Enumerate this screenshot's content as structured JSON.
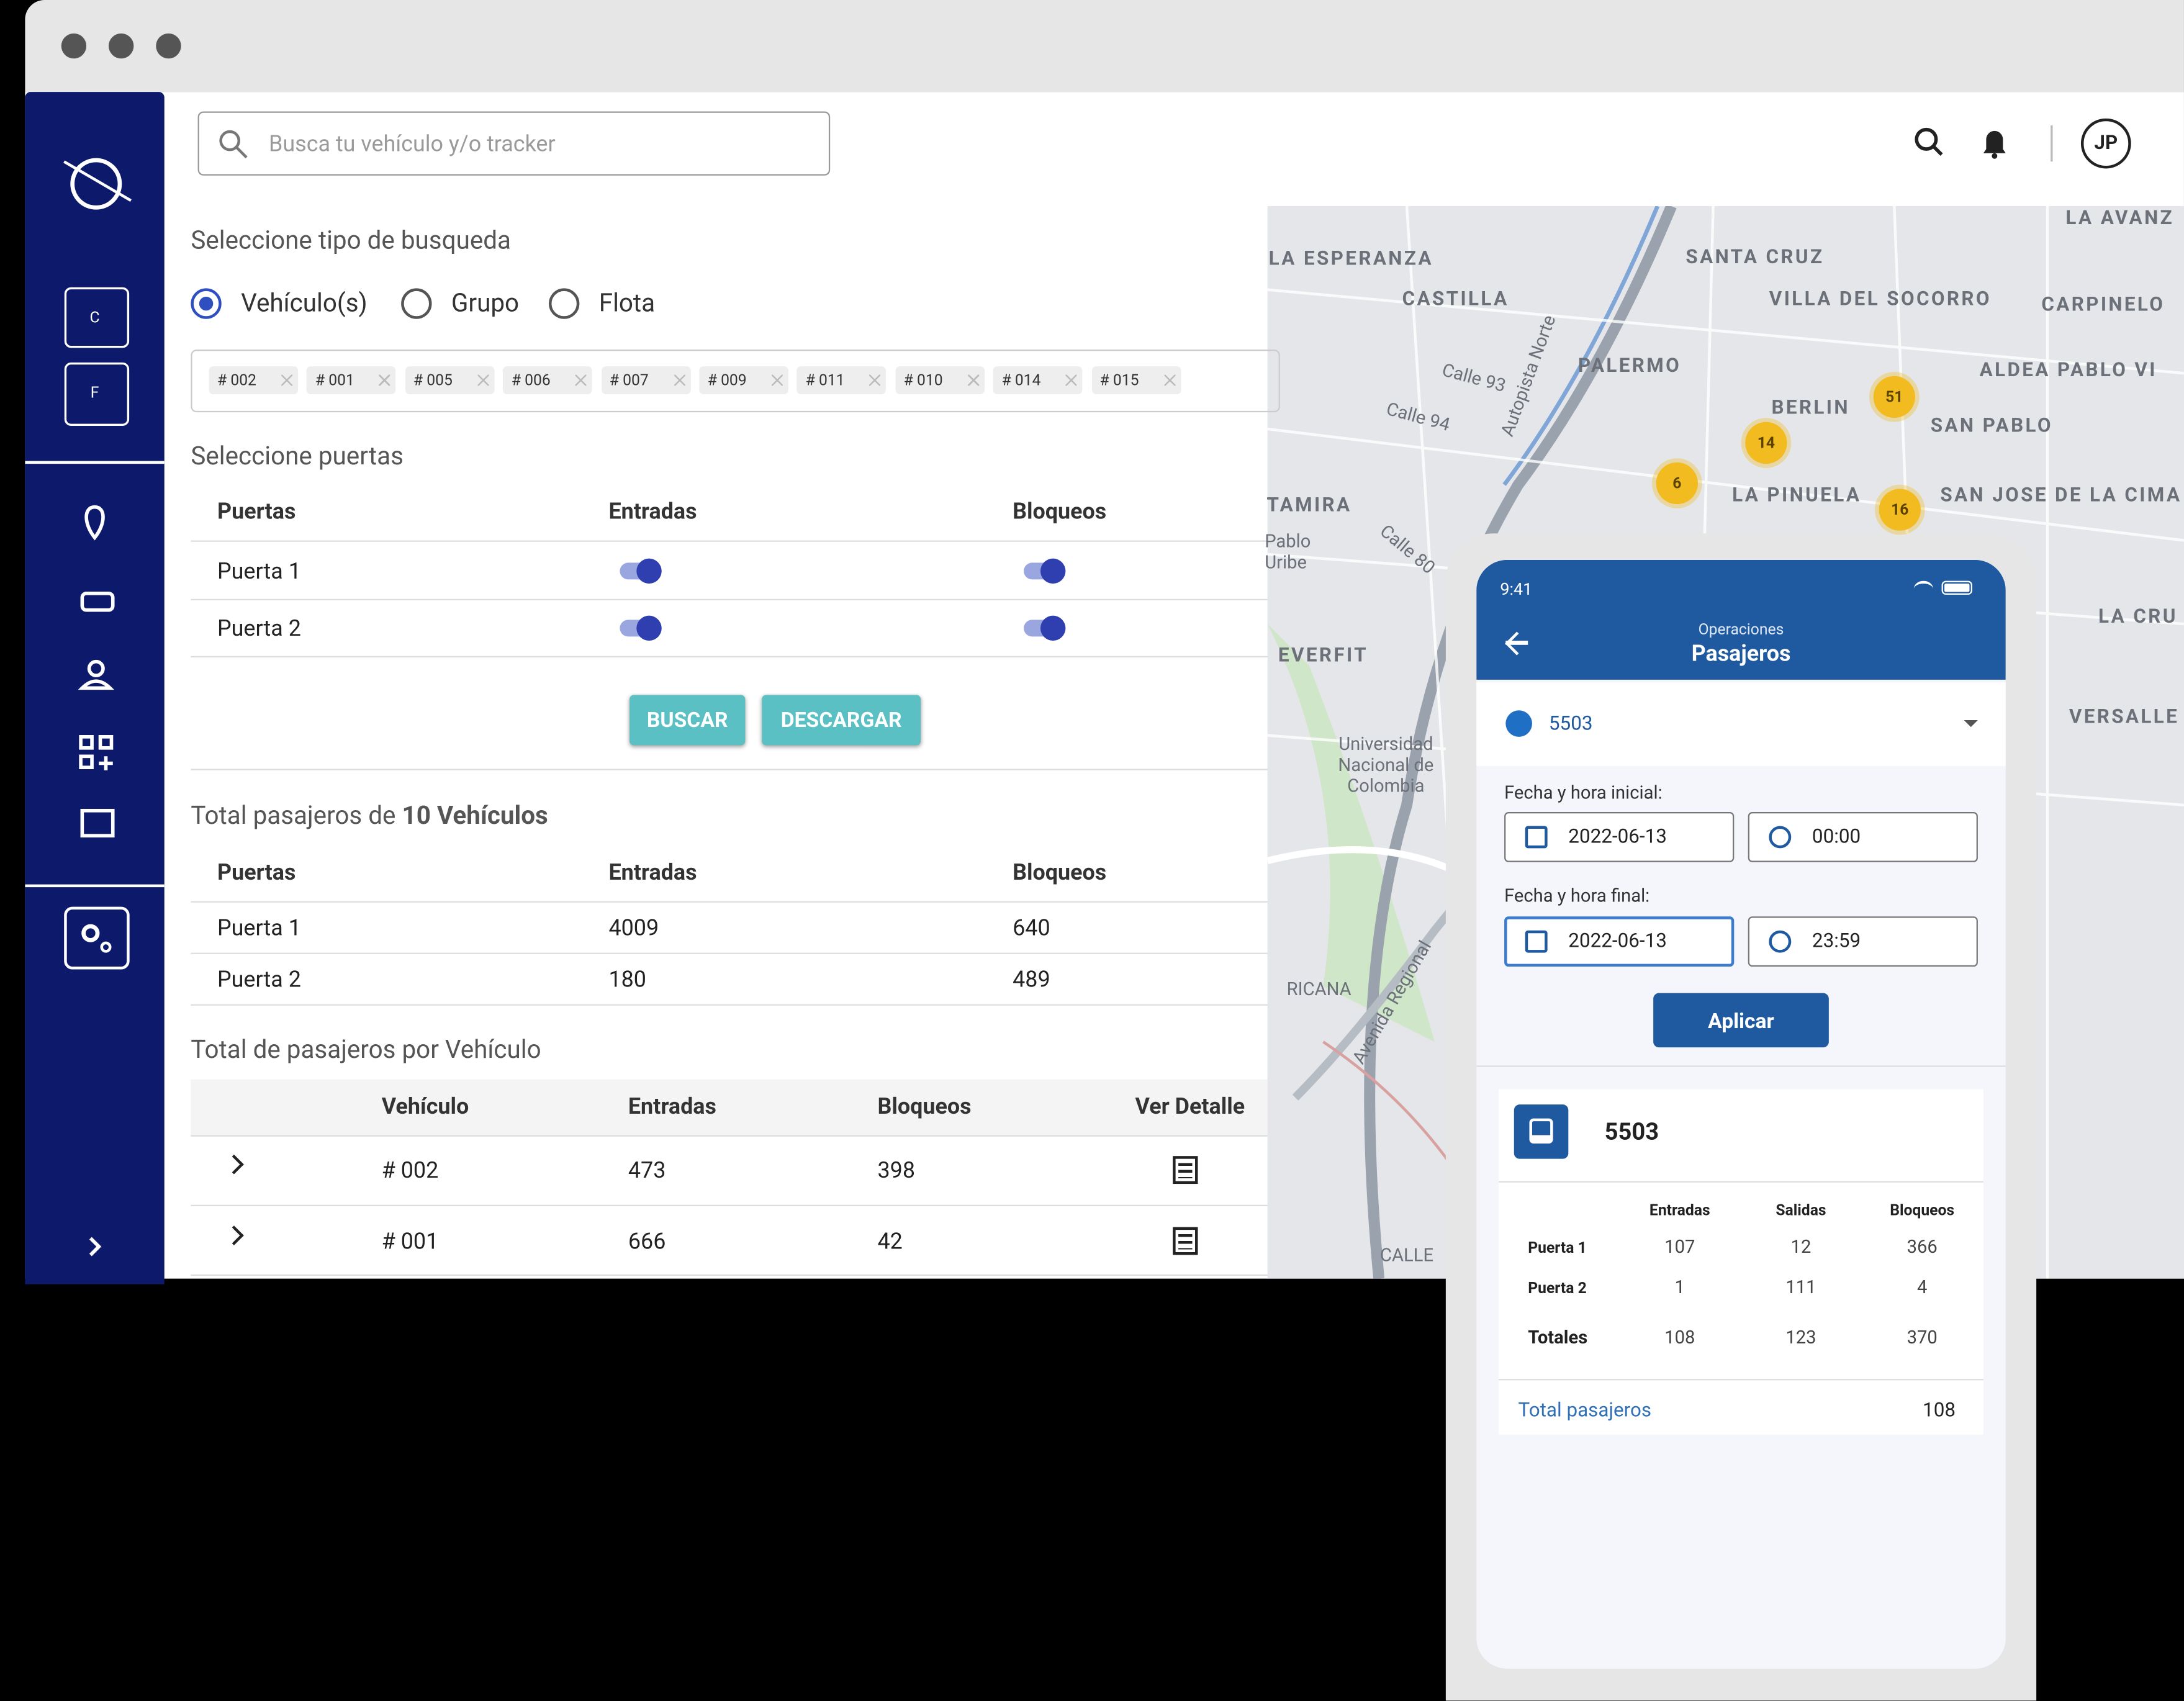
{
  "browser": {
    "search_placeholder": "Busca tu vehículo y/o tracker",
    "user_initials": "JP"
  },
  "sidebar": {
    "buttons": [
      "C",
      "F"
    ]
  },
  "search": {
    "type_label": "Seleccione tipo de busqueda",
    "options": [
      "Vehículo(s)",
      "Grupo",
      "Flota"
    ],
    "tags": [
      "# 002",
      "# 001",
      "# 005",
      "# 006",
      "# 007",
      "# 009",
      "# 011",
      "# 010",
      "# 014",
      "# 015"
    ]
  },
  "doors": {
    "title": "Seleccione puertas",
    "headers": [
      "Puertas",
      "Entradas",
      "Bloqueos"
    ],
    "rows": [
      "Puerta 1",
      "Puerta 2"
    ]
  },
  "buttons": [
    "BUSCAR",
    "DESCARGAR"
  ],
  "totals": {
    "title_prefix": "Total pasajeros de",
    "title_bold": "10 Vehículos",
    "headers": [
      "Puertas",
      "Entradas",
      "Bloqueos"
    ],
    "rows": [
      [
        "Puerta 1",
        4009,
        640
      ],
      [
        "Puerta 2",
        180,
        489
      ]
    ]
  },
  "per_vehicle": {
    "title": "Total de pasajeros por Vehículo",
    "headers": [
      "Vehículo",
      "Entradas",
      "Bloqueos",
      "Ver Detalle"
    ],
    "rows": [
      [
        "# 002",
        473,
        398
      ],
      [
        "# 001",
        666,
        42
      ]
    ]
  },
  "map": {
    "labels": [
      "LA ESPERANZA",
      "CASTILLA",
      "PALERMO",
      "SANTA CRUZ",
      "VILLA DEL SOCORRO",
      "CARPINELO",
      "ALDEA PABLO VI",
      "BERLIN",
      "SAN PABLO",
      "LA PINUELA",
      "SAN JOSE DE LA CIMA I",
      "LA AVANZ",
      "TAMIRA",
      "EVERFIT",
      "LA CRU",
      "VERSALLE",
      "Universidad Nacional de Colombia",
      "Pablo Uribe",
      "Autopista Norte",
      "Avenida Regional",
      "Calle 94",
      "Calle 93",
      "Calle 80",
      "RICANA",
      "CALLE"
    ],
    "clusters": [
      51,
      14,
      6,
      16
    ]
  },
  "phone": {
    "time": "9:41",
    "section": "Operaciones",
    "title": "Pasajeros",
    "vehicle": "5503",
    "start_label": "Fecha y hora inicial:",
    "start_date": "2022-06-13",
    "start_time": "00:00",
    "end_label": "Fecha y hora final:",
    "end_date": "2022-06-13",
    "end_time": "23:59",
    "apply": "Aplicar",
    "card_title": "5503",
    "headers": [
      "Entradas",
      "Salidas",
      "Bloqueos"
    ],
    "rows": [
      {
        "label": "Puerta 1",
        "values": [
          107,
          12,
          366
        ]
      },
      {
        "label": "Puerta 2",
        "values": [
          1,
          111,
          4
        ]
      },
      {
        "label": "Totales",
        "values": [
          108,
          123,
          370
        ]
      }
    ],
    "total_label": "Total pasajeros",
    "total_value": 108
  }
}
